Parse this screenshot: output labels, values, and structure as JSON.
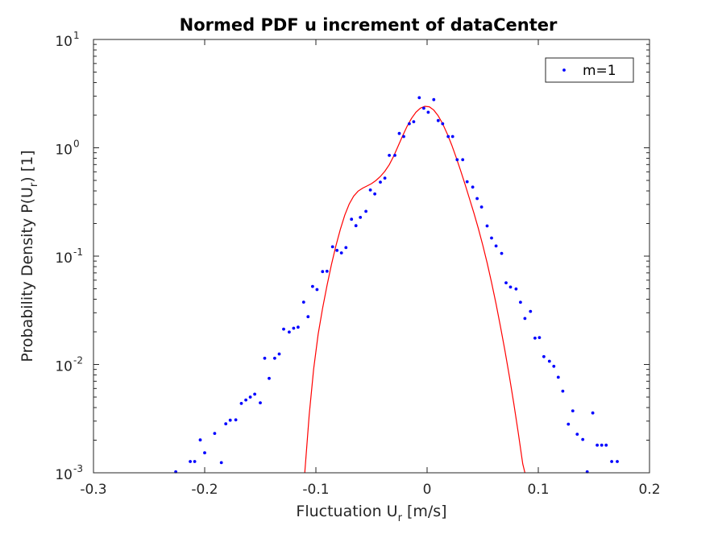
{
  "chart_data": {
    "type": "scatter",
    "title": "Normed PDF u increment of dataCenter",
    "xlabel": {
      "main": "Fluctuation U",
      "sub": "r",
      "unit": " [m/s]"
    },
    "ylabel": {
      "main": "Probability Density P(U",
      "sub": "r",
      "unit": ") [1]"
    },
    "xlim": [
      -0.3,
      0.2
    ],
    "ylim": [
      0.001,
      10
    ],
    "yscale": "log",
    "grid": false,
    "legend_position": "top-right",
    "x_ticks": [
      {
        "value": -0.3,
        "label": "-0.3"
      },
      {
        "value": -0.2,
        "label": "-0.2"
      },
      {
        "value": -0.1,
        "label": "-0.1"
      },
      {
        "value": 0,
        "label": "0"
      },
      {
        "value": 0.1,
        "label": "0.1"
      },
      {
        "value": 0.2,
        "label": "0.2"
      }
    ],
    "y_ticks": [
      {
        "value": 0.001,
        "base": "10",
        "exp": "-3"
      },
      {
        "value": 0.01,
        "base": "10",
        "exp": "-2"
      },
      {
        "value": 0.1,
        "base": "10",
        "exp": "-1"
      },
      {
        "value": 1,
        "base": "10",
        "exp": "0"
      },
      {
        "value": 10,
        "base": "10",
        "exp": "1"
      }
    ],
    "series": [
      {
        "name": "m=1",
        "kind": "markers",
        "color": "#0000ff",
        "points": [
          [
            -0.226,
            0.00102
          ],
          [
            -0.213,
            0.00127
          ],
          [
            -0.209,
            0.00127
          ],
          [
            -0.204,
            0.00201
          ],
          [
            -0.2,
            0.00153
          ],
          [
            -0.191,
            0.00231
          ],
          [
            -0.185,
            0.00124
          ],
          [
            -0.181,
            0.00283
          ],
          [
            -0.177,
            0.00306
          ],
          [
            -0.172,
            0.00308
          ],
          [
            -0.167,
            0.00437
          ],
          [
            -0.163,
            0.0047
          ],
          [
            -0.159,
            0.005
          ],
          [
            -0.155,
            0.00532
          ],
          [
            -0.15,
            0.00443
          ],
          [
            -0.146,
            0.0114
          ],
          [
            -0.142,
            0.00744
          ],
          [
            -0.137,
            0.0114
          ],
          [
            -0.133,
            0.0125
          ],
          [
            -0.129,
            0.0212
          ],
          [
            -0.124,
            0.0199
          ],
          [
            -0.12,
            0.0216
          ],
          [
            -0.116,
            0.0221
          ],
          [
            -0.111,
            0.0376
          ],
          [
            -0.107,
            0.0276
          ],
          [
            -0.103,
            0.0525
          ],
          [
            -0.099,
            0.0491
          ],
          [
            -0.094,
            0.072
          ],
          [
            -0.09,
            0.0725
          ],
          [
            -0.085,
            0.122
          ],
          [
            -0.081,
            0.113
          ],
          [
            -0.077,
            0.107
          ],
          [
            -0.073,
            0.12
          ],
          [
            -0.068,
            0.219
          ],
          [
            -0.064,
            0.191
          ],
          [
            -0.06,
            0.228
          ],
          [
            -0.055,
            0.259
          ],
          [
            -0.051,
            0.408
          ],
          [
            -0.047,
            0.375
          ],
          [
            -0.042,
            0.482
          ],
          [
            -0.038,
            0.525
          ],
          [
            -0.034,
            0.851
          ],
          [
            -0.029,
            0.851
          ],
          [
            -0.025,
            1.357
          ],
          [
            -0.021,
            1.27
          ],
          [
            -0.016,
            1.669
          ],
          [
            -0.012,
            1.741
          ],
          [
            -0.007,
            2.9
          ],
          [
            -0.003,
            2.316
          ],
          [
            0.001,
            2.129
          ],
          [
            0.006,
            2.782
          ],
          [
            0.01,
            1.784
          ],
          [
            0.014,
            1.669
          ],
          [
            0.019,
            1.27
          ],
          [
            0.023,
            1.27
          ],
          [
            0.027,
            0.776
          ],
          [
            0.032,
            0.776
          ],
          [
            0.036,
            0.486
          ],
          [
            0.041,
            0.434
          ],
          [
            0.045,
            0.34
          ],
          [
            0.049,
            0.284
          ],
          [
            0.054,
            0.19
          ],
          [
            0.058,
            0.147
          ],
          [
            0.062,
            0.124
          ],
          [
            0.067,
            0.106
          ],
          [
            0.071,
            0.0567
          ],
          [
            0.075,
            0.0518
          ],
          [
            0.08,
            0.0497
          ],
          [
            0.084,
            0.0375
          ],
          [
            0.088,
            0.0266
          ],
          [
            0.093,
            0.0309
          ],
          [
            0.097,
            0.0175
          ],
          [
            0.101,
            0.0177
          ],
          [
            0.105,
            0.0118
          ],
          [
            0.11,
            0.0107
          ],
          [
            0.114,
            0.00962
          ],
          [
            0.118,
            0.00762
          ],
          [
            0.122,
            0.00567
          ],
          [
            0.127,
            0.00281
          ],
          [
            0.131,
            0.00373
          ],
          [
            0.135,
            0.00227
          ],
          [
            0.14,
            0.00203
          ],
          [
            0.144,
            0.00102
          ],
          [
            0.149,
            0.00357
          ],
          [
            0.153,
            0.0018
          ],
          [
            0.157,
            0.0018
          ],
          [
            0.161,
            0.0018
          ],
          [
            0.166,
            0.00127
          ],
          [
            0.171,
            0.00127
          ]
        ]
      },
      {
        "name": "",
        "kind": "line",
        "color": "#ff0000",
        "points": [
          [
            -0.11,
            0.001
          ],
          [
            -0.106,
            0.00342
          ],
          [
            -0.102,
            0.00905
          ],
          [
            -0.098,
            0.019
          ],
          [
            -0.094,
            0.033
          ],
          [
            -0.09,
            0.0535
          ],
          [
            -0.086,
            0.0836
          ],
          [
            -0.082,
            0.124
          ],
          [
            -0.078,
            0.177
          ],
          [
            -0.074,
            0.24
          ],
          [
            -0.07,
            0.303
          ],
          [
            -0.066,
            0.358
          ],
          [
            -0.062,
            0.398
          ],
          [
            -0.058,
            0.424
          ],
          [
            -0.054,
            0.444
          ],
          [
            -0.05,
            0.467
          ],
          [
            -0.046,
            0.499
          ],
          [
            -0.042,
            0.544
          ],
          [
            -0.038,
            0.608
          ],
          [
            -0.034,
            0.699
          ],
          [
            -0.03,
            0.839
          ],
          [
            -0.026,
            1.039
          ],
          [
            -0.022,
            1.289
          ],
          [
            -0.018,
            1.579
          ],
          [
            -0.014,
            1.872
          ],
          [
            -0.01,
            2.13
          ],
          [
            -0.006,
            2.322
          ],
          [
            -0.002,
            2.413
          ],
          [
            0.002,
            2.392
          ],
          [
            0.006,
            2.23
          ],
          [
            0.01,
            1.974
          ],
          [
            0.014,
            1.669
          ],
          [
            0.018,
            1.357
          ],
          [
            0.022,
            1.069
          ],
          [
            0.026,
            0.823
          ],
          [
            0.03,
            0.622
          ],
          [
            0.034,
            0.465
          ],
          [
            0.038,
            0.343
          ],
          [
            0.042,
            0.251
          ],
          [
            0.046,
            0.181
          ],
          [
            0.05,
            0.127
          ],
          [
            0.054,
            0.0868
          ],
          [
            0.058,
            0.0571
          ],
          [
            0.062,
            0.0362
          ],
          [
            0.066,
            0.0223
          ],
          [
            0.07,
            0.0134
          ],
          [
            0.074,
            0.00777
          ],
          [
            0.078,
            0.00436
          ],
          [
            0.082,
            0.00232
          ],
          [
            0.086,
            0.00121
          ],
          [
            0.088,
            0.001
          ]
        ]
      }
    ]
  }
}
